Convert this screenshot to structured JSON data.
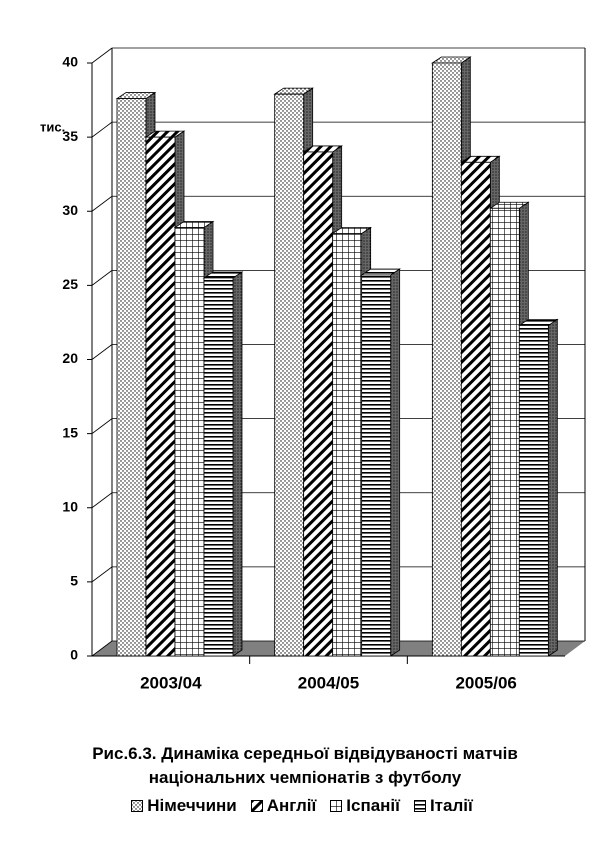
{
  "chart_data": {
    "type": "bar3d",
    "title": "Рис.6.3. Динаміка середньої відвідуваності матчів національних чемпіонатів з футболу",
    "y_label": "тис.",
    "categories": [
      "2003/04",
      "2004/05",
      "2005/06"
    ],
    "series": [
      {
        "name": "Німеччини",
        "pattern": "dots",
        "values": [
          37.6,
          37.9,
          40.0
        ]
      },
      {
        "name": "Англії",
        "pattern": "diagonal",
        "values": [
          35.0,
          34.0,
          33.3
        ]
      },
      {
        "name": "Іспанії",
        "pattern": "grid",
        "values": [
          28.9,
          28.5,
          30.2
        ]
      },
      {
        "name": "Італії",
        "pattern": "horizontal",
        "values": [
          25.5,
          25.7,
          22.3
        ]
      }
    ],
    "ylim": [
      0,
      40
    ],
    "yticks": [
      0,
      5,
      10,
      15,
      20,
      25,
      30,
      35,
      40
    ],
    "grid": true
  }
}
